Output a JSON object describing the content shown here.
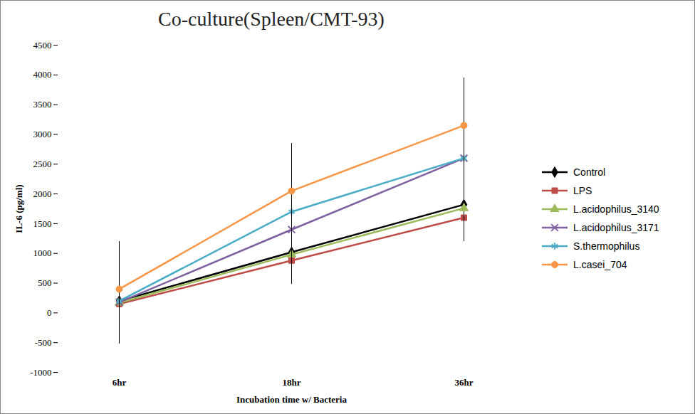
{
  "chart_data": {
    "type": "line",
    "title": "Co-culture(Spleen/CMT-93)",
    "x_label": "Incubation time w/ Bacteria",
    "y_label": "IL-6 (pg/ml)",
    "categories": [
      "6hr",
      "18hr",
      "36hr"
    ],
    "series": [
      {
        "name": "Control",
        "color": "#000000",
        "marker": "diamond",
        "values": [
          200,
          1020,
          1820
        ],
        "errors": [
          700,
          450,
          500
        ]
      },
      {
        "name": "LPS",
        "color": "#be4b48",
        "marker": "square",
        "values": [
          150,
          880,
          1600
        ],
        "errors": [
          500,
          400,
          400
        ]
      },
      {
        "name": "L.acidophilus_3140",
        "color": "#9bbb59",
        "marker": "triangle",
        "values": [
          170,
          980,
          1760
        ],
        "errors": [
          500,
          450,
          500
        ]
      },
      {
        "name": "L.acidophilus_3171",
        "color": "#7f60a0",
        "marker": "times",
        "values": [
          180,
          1400,
          2600
        ],
        "errors": [
          700,
          600,
          700
        ]
      },
      {
        "name": "S.thermophilus",
        "color": "#4bacc6",
        "marker": "asterisk",
        "values": [
          200,
          1700,
          2600
        ],
        "errors": [
          700,
          700,
          700
        ]
      },
      {
        "name": "L.casei_704",
        "color": "#f79646",
        "marker": "circle",
        "values": [
          400,
          2050,
          3150
        ],
        "errors": [
          800,
          800,
          800
        ]
      }
    ],
    "ylim": [
      -1000,
      4500
    ],
    "yticks": [
      -1000,
      -500,
      0,
      500,
      1000,
      1500,
      2000,
      2500,
      3000,
      3500,
      4000,
      4500
    ],
    "grid": false,
    "legend": "right"
  }
}
